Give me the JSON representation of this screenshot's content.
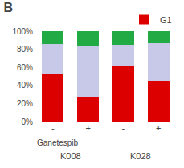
{
  "chart_data": {
    "type": "bar",
    "title": "B",
    "stacked": true,
    "categories": [
      "-",
      "+",
      "-",
      "+"
    ],
    "xlabel": "Ganetespib",
    "annotations": [
      "K008",
      "K028"
    ],
    "series": [
      {
        "name": "G1",
        "color": "#dd0000",
        "values": [
          53,
          27,
          61,
          45
        ]
      },
      {
        "color": "#c8c8e8",
        "values": [
          33,
          57,
          24,
          42
        ]
      },
      {
        "color": "#22aa44",
        "values": [
          14,
          16,
          15,
          13
        ]
      }
    ],
    "ylim": [
      0,
      100
    ],
    "yticks": [
      {
        "value": 0,
        "label": "0%"
      },
      {
        "value": 20,
        "label": "20%"
      },
      {
        "value": 40,
        "label": "40%"
      },
      {
        "value": 60,
        "label": "60%"
      },
      {
        "value": 80,
        "label": "80%"
      },
      {
        "value": 100,
        "label": "100%"
      }
    ],
    "grid": false,
    "legend": "top right"
  }
}
